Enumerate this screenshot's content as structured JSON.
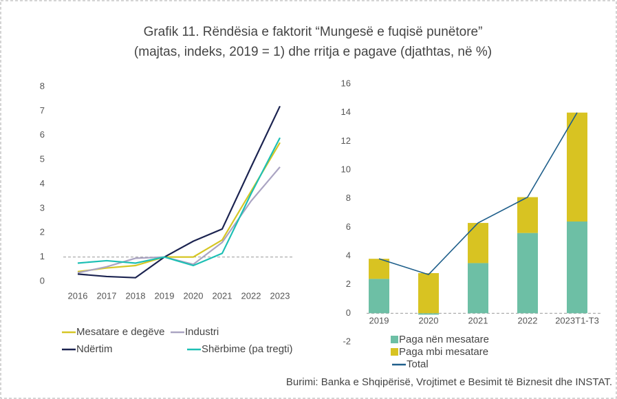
{
  "title": "Grafik 11.  Rëndësia e faktorit “Mungesë e fuqisë punëtore”",
  "subtitle": "(majtas, indeks, 2019 = 1) dhe rritja e pagave (djathtas, në %)",
  "source": "Burimi: Banka e Shqipërisë, Vrojtimet e Besimit të Biznesit dhe INSTAT.",
  "chart_data": [
    {
      "type": "line",
      "categories": [
        "2016",
        "2017",
        "2018",
        "2019",
        "2020",
        "2021",
        "2022",
        "2023"
      ],
      "series": [
        {
          "name": "Mesatare e degëve",
          "color": "#d6c624",
          "values": [
            0.4,
            0.55,
            0.65,
            1.0,
            1.0,
            1.7,
            3.7,
            5.7
          ]
        },
        {
          "name": "Industri",
          "color": "#aaa4c2",
          "values": [
            0.35,
            0.6,
            0.95,
            1.0,
            0.7,
            1.6,
            3.3,
            4.7
          ]
        },
        {
          "name": "Ndërtim",
          "color": "#1b2350",
          "values": [
            0.3,
            0.2,
            0.15,
            1.0,
            1.65,
            2.15,
            4.7,
            7.2
          ]
        },
        {
          "name": "Shërbime (pa tregti)",
          "color": "#1dbfb4",
          "values": [
            0.75,
            0.85,
            0.75,
            1.0,
            0.65,
            1.15,
            3.6,
            5.9
          ]
        }
      ],
      "ylim": [
        0,
        8
      ],
      "yticks": [
        0,
        1,
        2,
        3,
        4,
        5,
        6,
        7,
        8
      ],
      "reference_line": 1
    },
    {
      "type": "bar",
      "stacked": true,
      "categories": [
        "2019",
        "2020",
        "2021",
        "2022",
        "2023T1-T3"
      ],
      "series": [
        {
          "name": "Paga nën mesatare",
          "color": "#6dbfa5",
          "values": [
            2.4,
            -0.1,
            3.5,
            5.6,
            6.4
          ]
        },
        {
          "name": "Paga mbi mesatare",
          "color": "#d8c322",
          "values": [
            1.4,
            2.8,
            2.8,
            2.5,
            7.6
          ]
        },
        {
          "name": "Total",
          "color": "#1f5f8b",
          "type": "line",
          "values": [
            3.8,
            2.7,
            6.3,
            8.1,
            14.0
          ]
        }
      ],
      "ylim": [
        -2,
        16
      ],
      "yticks": [
        -2,
        0,
        2,
        4,
        6,
        8,
        10,
        12,
        14,
        16
      ]
    }
  ]
}
